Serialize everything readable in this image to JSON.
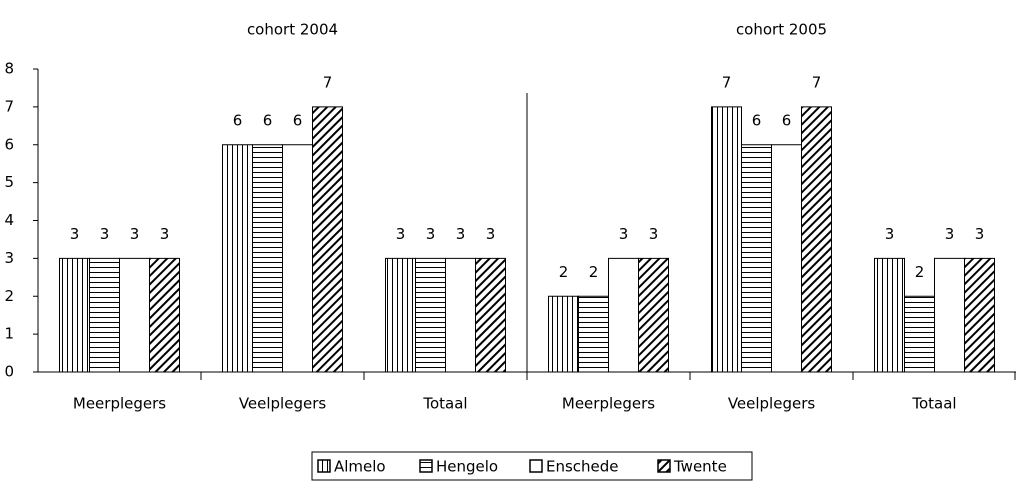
{
  "chart_data": {
    "type": "bar",
    "ylim": [
      0,
      8
    ],
    "yticks": [
      0,
      1,
      2,
      3,
      4,
      5,
      6,
      7,
      8
    ],
    "legend": "bottom",
    "series": [
      {
        "name": "Almelo",
        "color": "#000000",
        "pattern": "vertical"
      },
      {
        "name": "Hengelo",
        "color": "#000000",
        "pattern": "horizontal"
      },
      {
        "name": "Enschede",
        "color": "#000000",
        "pattern": "none"
      },
      {
        "name": "Twente",
        "color": "#000000",
        "pattern": "diagonal"
      }
    ],
    "panels": [
      {
        "title": "cohort 2004",
        "categories": [
          "Meerplegers",
          "Veelplegers",
          "Totaal"
        ],
        "values": [
          [
            3,
            6,
            3
          ],
          [
            3,
            6,
            3
          ],
          [
            3,
            6,
            3
          ],
          [
            3,
            7,
            3
          ]
        ]
      },
      {
        "title": "cohort 2005",
        "categories": [
          "Meerplegers",
          "Veelplegers",
          "Totaal"
        ],
        "values": [
          [
            2,
            7,
            3
          ],
          [
            2,
            6,
            2
          ],
          [
            3,
            6,
            3
          ],
          [
            3,
            7,
            3
          ]
        ]
      }
    ]
  }
}
